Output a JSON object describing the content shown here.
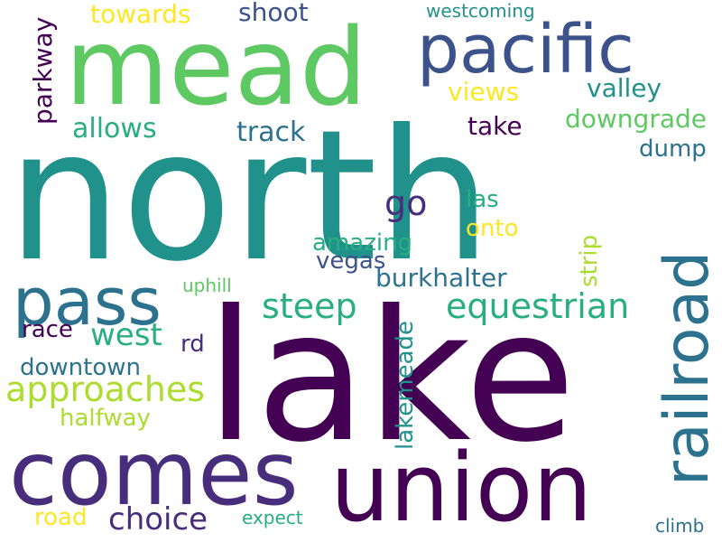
{
  "palette": {
    "dark_purple": "#440154",
    "indigo": "#472d7b",
    "slate_blue": "#3b528b",
    "steel_blue": "#2c728e",
    "teal": "#21918c",
    "sea_green": "#28ae80",
    "green": "#5ec962",
    "lime": "#addc30",
    "yellow": "#fde725"
  },
  "words": {
    "north": "north",
    "lake": "lake",
    "mead": "mead",
    "union": "union",
    "comes": "comes",
    "pacific": "pacific",
    "railroad": "railroad",
    "pass": "pass",
    "equestrian": "equestrian",
    "steep": "steep",
    "approaches": "approaches",
    "go": "go",
    "choice": "choice",
    "west": "west",
    "burkhalter": "burkhalter",
    "valley": "valley",
    "downgrade": "downgrade",
    "views": "views",
    "take": "take",
    "track": "track",
    "allows": "allows",
    "shoot": "shoot",
    "towards": "towards",
    "parkway": "parkway",
    "westcoming": "westcoming",
    "dump": "dump",
    "las": "las",
    "onto": "onto",
    "amazing": "amazing",
    "vegas": "vegas",
    "strip": "strip",
    "uphill": "uphill",
    "race": "race",
    "rd": "rd",
    "downtown": "downtown",
    "halfway": "halfway",
    "lakemeade": "lakemeade",
    "road": "road",
    "expect": "expect",
    "climb": "climb"
  }
}
